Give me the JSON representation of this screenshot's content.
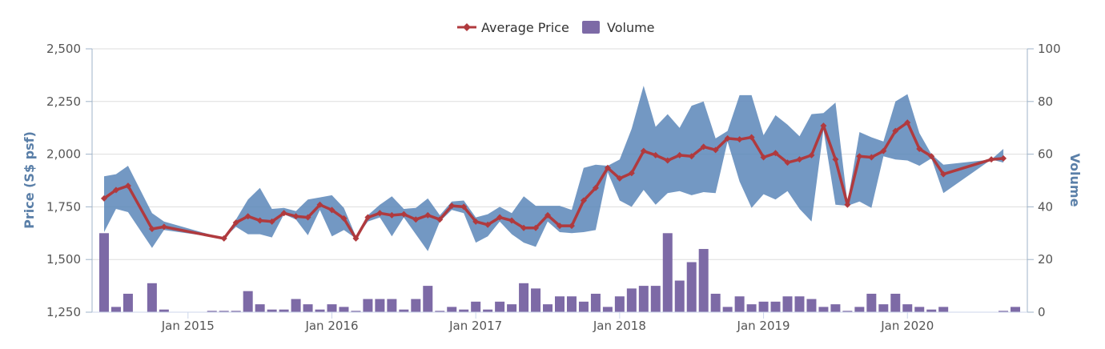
{
  "chart_data": {
    "type": "line",
    "legend": {
      "placement": "top-center",
      "items": [
        "Average Price",
        "Volume"
      ]
    },
    "colors": {
      "price": "#b03a3e",
      "band": "#5b86b8",
      "volume": "#7d6aa6",
      "axis_title": "#5a7fa8",
      "grid": "#dddddd"
    },
    "x_axis": {
      "ticks": [
        "Jan 2015",
        "Jan 2016",
        "Jan 2017",
        "Jan 2018",
        "Jan 2019",
        "Jan 2020"
      ],
      "range": [
        "2014-05",
        "2020-11"
      ]
    },
    "y_left": {
      "title": "Price (S$ psf)",
      "ylim": [
        1250,
        2500
      ],
      "ticks": [
        "1,250",
        "1,500",
        "1,750",
        "2,000",
        "2,250",
        "2,500"
      ]
    },
    "y_right": {
      "title": "Volume",
      "ylim": [
        0,
        100
      ],
      "ticks": [
        "0",
        "20",
        "40",
        "60",
        "80",
        "100"
      ]
    },
    "series": [
      {
        "name": "Average Price",
        "type": "line",
        "points": [
          [
            "2014-06",
            1790
          ],
          [
            "2014-07",
            1830
          ],
          [
            "2014-08",
            1850
          ],
          [
            "2014-10",
            1645
          ],
          [
            "2014-11",
            1655
          ],
          [
            "2015-04",
            1600
          ],
          [
            "2015-05",
            1675
          ],
          [
            "2015-06",
            1705
          ],
          [
            "2015-07",
            1685
          ],
          [
            "2015-08",
            1680
          ],
          [
            "2015-09",
            1720
          ],
          [
            "2015-10",
            1705
          ],
          [
            "2015-11",
            1700
          ],
          [
            "2015-12",
            1760
          ],
          [
            "2016-01",
            1735
          ],
          [
            "2016-02",
            1695
          ],
          [
            "2016-03",
            1600
          ],
          [
            "2016-04",
            1700
          ],
          [
            "2016-05",
            1720
          ],
          [
            "2016-06",
            1710
          ],
          [
            "2016-07",
            1715
          ],
          [
            "2016-08",
            1690
          ],
          [
            "2016-09",
            1710
          ],
          [
            "2016-10",
            1690
          ],
          [
            "2016-11",
            1755
          ],
          [
            "2016-12",
            1750
          ],
          [
            "2017-01",
            1680
          ],
          [
            "2017-02",
            1665
          ],
          [
            "2017-03",
            1700
          ],
          [
            "2017-04",
            1685
          ],
          [
            "2017-05",
            1650
          ],
          [
            "2017-06",
            1650
          ],
          [
            "2017-07",
            1710
          ],
          [
            "2017-08",
            1660
          ],
          [
            "2017-09",
            1660
          ],
          [
            "2017-10",
            1780
          ],
          [
            "2017-11",
            1840
          ],
          [
            "2017-12",
            1935
          ],
          [
            "2018-01",
            1885
          ],
          [
            "2018-02",
            1910
          ],
          [
            "2018-03",
            2015
          ],
          [
            "2018-04",
            1995
          ],
          [
            "2018-05",
            1970
          ],
          [
            "2018-06",
            1995
          ],
          [
            "2018-07",
            1990
          ],
          [
            "2018-08",
            2035
          ],
          [
            "2018-09",
            2020
          ],
          [
            "2018-10",
            2075
          ],
          [
            "2018-11",
            2070
          ],
          [
            "2018-12",
            2080
          ],
          [
            "2019-01",
            1985
          ],
          [
            "2019-02",
            2005
          ],
          [
            "2019-03",
            1960
          ],
          [
            "2019-04",
            1975
          ],
          [
            "2019-05",
            1995
          ],
          [
            "2019-06",
            2135
          ],
          [
            "2019-07",
            1975
          ],
          [
            "2019-08",
            1760
          ],
          [
            "2019-09",
            1990
          ],
          [
            "2019-10",
            1985
          ],
          [
            "2019-11",
            2015
          ],
          [
            "2019-12",
            2110
          ],
          [
            "2020-01",
            2150
          ],
          [
            "2020-02",
            2025
          ],
          [
            "2020-03",
            1990
          ],
          [
            "2020-04",
            1905
          ],
          [
            "2020-08",
            1975
          ],
          [
            "2020-09",
            1980
          ]
        ]
      },
      {
        "name": "Price Range",
        "type": "arearange",
        "points": [
          [
            "2014-06",
            1630,
            1895
          ],
          [
            "2014-07",
            1740,
            1905
          ],
          [
            "2014-08",
            1725,
            1945
          ],
          [
            "2014-10",
            1555,
            1720
          ],
          [
            "2014-11",
            1640,
            1680
          ],
          [
            "2015-04",
            1600,
            1600
          ],
          [
            "2015-05",
            1655,
            1690
          ],
          [
            "2015-06",
            1620,
            1785
          ],
          [
            "2015-07",
            1620,
            1840
          ],
          [
            "2015-08",
            1605,
            1740
          ],
          [
            "2015-09",
            1715,
            1745
          ],
          [
            "2015-10",
            1690,
            1730
          ],
          [
            "2015-11",
            1615,
            1785
          ],
          [
            "2015-12",
            1735,
            1795
          ],
          [
            "2016-01",
            1610,
            1805
          ],
          [
            "2016-02",
            1640,
            1745
          ],
          [
            "2016-03",
            1600,
            1610
          ],
          [
            "2016-04",
            1680,
            1710
          ],
          [
            "2016-05",
            1700,
            1760
          ],
          [
            "2016-06",
            1610,
            1800
          ],
          [
            "2016-07",
            1700,
            1740
          ],
          [
            "2016-08",
            1620,
            1745
          ],
          [
            "2016-09",
            1540,
            1790
          ],
          [
            "2016-10",
            1680,
            1710
          ],
          [
            "2016-11",
            1735,
            1775
          ],
          [
            "2016-12",
            1720,
            1780
          ],
          [
            "2017-01",
            1580,
            1700
          ],
          [
            "2017-02",
            1610,
            1715
          ],
          [
            "2017-03",
            1680,
            1750
          ],
          [
            "2017-04",
            1620,
            1720
          ],
          [
            "2017-05",
            1580,
            1800
          ],
          [
            "2017-06",
            1560,
            1755
          ],
          [
            "2017-07",
            1680,
            1755
          ],
          [
            "2017-08",
            1630,
            1755
          ],
          [
            "2017-09",
            1625,
            1735
          ],
          [
            "2017-10",
            1630,
            1935
          ],
          [
            "2017-11",
            1640,
            1950
          ],
          [
            "2017-12",
            1915,
            1945
          ],
          [
            "2018-01",
            1780,
            1975
          ],
          [
            "2018-02",
            1750,
            2120
          ],
          [
            "2018-03",
            1830,
            2325
          ],
          [
            "2018-04",
            1760,
            2130
          ],
          [
            "2018-05",
            1815,
            2190
          ],
          [
            "2018-06",
            1825,
            2125
          ],
          [
            "2018-07",
            1805,
            2230
          ],
          [
            "2018-08",
            1820,
            2250
          ],
          [
            "2018-09",
            1815,
            2075
          ],
          [
            "2018-10",
            2060,
            2110
          ],
          [
            "2018-11",
            1870,
            2280
          ],
          [
            "2018-12",
            1745,
            2280
          ],
          [
            "2019-01",
            1810,
            2090
          ],
          [
            "2019-02",
            1785,
            2185
          ],
          [
            "2019-03",
            1825,
            2140
          ],
          [
            "2019-04",
            1740,
            2085
          ],
          [
            "2019-05",
            1680,
            2190
          ],
          [
            "2019-06",
            2115,
            2195
          ],
          [
            "2019-07",
            1760,
            2245
          ],
          [
            "2019-08",
            1755,
            1770
          ],
          [
            "2019-09",
            1775,
            2105
          ],
          [
            "2019-10",
            1745,
            2080
          ],
          [
            "2019-11",
            1990,
            2060
          ],
          [
            "2019-12",
            1975,
            2250
          ],
          [
            "2020-01",
            1970,
            2285
          ],
          [
            "2020-02",
            1945,
            2100
          ],
          [
            "2020-03",
            1980,
            2000
          ],
          [
            "2020-04",
            1815,
            1950
          ],
          [
            "2020-08",
            1975,
            1975
          ],
          [
            "2020-09",
            1960,
            2025
          ]
        ]
      },
      {
        "name": "Volume",
        "type": "bar",
        "points": [
          [
            "2014-06",
            30
          ],
          [
            "2014-07",
            2
          ],
          [
            "2014-08",
            7
          ],
          [
            "2014-10",
            11
          ],
          [
            "2014-11",
            1
          ],
          [
            "2015-03",
            0.5
          ],
          [
            "2015-04",
            0.5
          ],
          [
            "2015-05",
            0.5
          ],
          [
            "2015-06",
            8
          ],
          [
            "2015-07",
            3
          ],
          [
            "2015-08",
            1
          ],
          [
            "2015-09",
            1
          ],
          [
            "2015-10",
            5
          ],
          [
            "2015-11",
            3
          ],
          [
            "2015-12",
            1
          ],
          [
            "2016-01",
            3
          ],
          [
            "2016-02",
            2
          ],
          [
            "2016-03",
            0.5
          ],
          [
            "2016-04",
            5
          ],
          [
            "2016-05",
            5
          ],
          [
            "2016-06",
            5
          ],
          [
            "2016-07",
            1
          ],
          [
            "2016-08",
            5
          ],
          [
            "2016-09",
            10
          ],
          [
            "2016-10",
            0.5
          ],
          [
            "2016-11",
            2
          ],
          [
            "2016-12",
            1
          ],
          [
            "2017-01",
            4
          ],
          [
            "2017-02",
            1
          ],
          [
            "2017-03",
            4
          ],
          [
            "2017-04",
            3
          ],
          [
            "2017-05",
            11
          ],
          [
            "2017-06",
            9
          ],
          [
            "2017-07",
            3
          ],
          [
            "2017-08",
            6
          ],
          [
            "2017-09",
            6
          ],
          [
            "2017-10",
            4
          ],
          [
            "2017-11",
            7
          ],
          [
            "2017-12",
            2
          ],
          [
            "2018-01",
            6
          ],
          [
            "2018-02",
            9
          ],
          [
            "2018-03",
            10
          ],
          [
            "2018-04",
            10
          ],
          [
            "2018-05",
            30
          ],
          [
            "2018-06",
            12
          ],
          [
            "2018-07",
            19
          ],
          [
            "2018-08",
            24
          ],
          [
            "2018-09",
            7
          ],
          [
            "2018-10",
            2
          ],
          [
            "2018-11",
            6
          ],
          [
            "2018-12",
            3
          ],
          [
            "2019-01",
            4
          ],
          [
            "2019-02",
            4
          ],
          [
            "2019-03",
            6
          ],
          [
            "2019-04",
            6
          ],
          [
            "2019-05",
            5
          ],
          [
            "2019-06",
            2
          ],
          [
            "2019-07",
            3
          ],
          [
            "2019-08",
            0.5
          ],
          [
            "2019-09",
            2
          ],
          [
            "2019-10",
            7
          ],
          [
            "2019-11",
            3
          ],
          [
            "2019-12",
            7
          ],
          [
            "2020-01",
            3
          ],
          [
            "2020-02",
            2
          ],
          [
            "2020-03",
            1
          ],
          [
            "2020-04",
            2
          ],
          [
            "2020-09",
            0.5
          ],
          [
            "2020-10",
            2
          ]
        ]
      }
    ]
  }
}
